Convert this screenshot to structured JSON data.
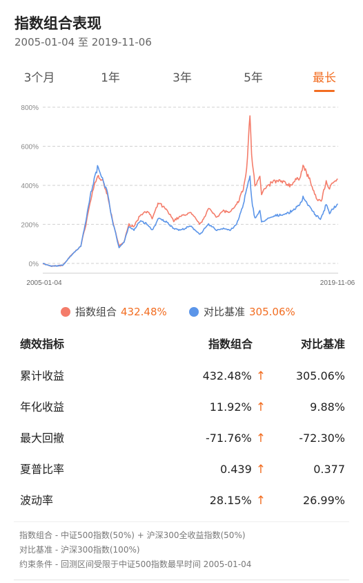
{
  "header": {
    "title": "指数组合表现",
    "date_range": "2005-01-04 至 2019-11-06"
  },
  "tabs": [
    {
      "label": "3个月",
      "active": false
    },
    {
      "label": "1年",
      "active": false
    },
    {
      "label": "3年",
      "active": false
    },
    {
      "label": "5年",
      "active": false
    },
    {
      "label": "最长",
      "active": true
    }
  ],
  "legend": {
    "items": [
      {
        "name": "指数组合",
        "value": "432.48%",
        "color": "#f47c6a"
      },
      {
        "name": "对比基准",
        "value": "305.06%",
        "color": "#5b95e9"
      }
    ]
  },
  "colors": {
    "accent": "#f26d21",
    "portfolio": "#f47c6a",
    "benchmark": "#5b95e9"
  },
  "table": {
    "headers": [
      "绩效指标",
      "指数组合",
      "对比基准"
    ],
    "rows": [
      {
        "label": "累计收益",
        "portfolio": "432.48%",
        "benchmark": "305.06%",
        "up": true
      },
      {
        "label": "年化收益",
        "portfolio": "11.92%",
        "benchmark": "9.88%",
        "up": true
      },
      {
        "label": "最大回撤",
        "portfolio": "-71.76%",
        "benchmark": "-72.30%",
        "up": true
      },
      {
        "label": "夏普比率",
        "portfolio": "0.439",
        "benchmark": "0.377",
        "up": true
      },
      {
        "label": "波动率",
        "portfolio": "28.15%",
        "benchmark": "26.99%",
        "up": true
      }
    ],
    "arrow": "↑"
  },
  "notes": [
    "指数组合 - 中证500指数(50%) + 沪深300全收益指数(50%)",
    "对比基准 - 沪深300指数(100%)",
    "约束条件 - 回测区间受限于中证500指数最早时间 2005-01-04"
  ],
  "chart_data": {
    "type": "line",
    "x_labels": [
      "2005-01-04",
      "2019-11-06"
    ],
    "ylim": [
      -50,
      800
    ],
    "y_ticks": [
      0,
      200,
      400,
      600,
      800
    ],
    "y_tick_labels": [
      "0%",
      "200%",
      "400%",
      "600%",
      "800%"
    ],
    "grid": true,
    "series": [
      {
        "name": "指数组合",
        "color": "#f47c6a",
        "x": [
          "2005-01",
          "2005-06",
          "2006-01",
          "2006-06",
          "2006-12",
          "2007-03",
          "2007-06",
          "2007-08",
          "2007-10",
          "2007-12",
          "2008-01",
          "2008-04",
          "2008-07",
          "2008-11",
          "2009-02",
          "2009-05",
          "2009-08",
          "2009-12",
          "2010-04",
          "2010-07",
          "2010-11",
          "2011-04",
          "2011-08",
          "2011-12",
          "2012-06",
          "2012-12",
          "2013-05",
          "2013-10",
          "2014-02",
          "2014-06",
          "2014-10",
          "2014-12",
          "2015-02",
          "2015-04",
          "2015-06",
          "2015-07",
          "2015-09",
          "2015-12",
          "2016-01",
          "2016-03",
          "2016-08",
          "2017-01",
          "2017-06",
          "2017-12",
          "2018-02",
          "2018-06",
          "2018-10",
          "2019-01",
          "2019-04",
          "2019-06",
          "2019-09",
          "2019-11"
        ],
        "values": [
          0,
          -15,
          -10,
          40,
          90,
          200,
          330,
          400,
          450,
          430,
          420,
          350,
          220,
          90,
          110,
          200,
          190,
          250,
          270,
          230,
          310,
          270,
          220,
          240,
          260,
          200,
          280,
          240,
          270,
          260,
          300,
          340,
          380,
          480,
          760,
          560,
          400,
          450,
          360,
          380,
          420,
          420,
          400,
          440,
          500,
          430,
          330,
          320,
          420,
          380,
          430,
          432.48
        ]
      },
      {
        "name": "对比基准",
        "color": "#5b95e9",
        "x": [
          "2005-01",
          "2005-06",
          "2006-01",
          "2006-06",
          "2006-12",
          "2007-03",
          "2007-06",
          "2007-08",
          "2007-10",
          "2007-12",
          "2008-01",
          "2008-04",
          "2008-07",
          "2008-11",
          "2009-02",
          "2009-05",
          "2009-08",
          "2009-12",
          "2010-04",
          "2010-07",
          "2010-11",
          "2011-04",
          "2011-08",
          "2011-12",
          "2012-06",
          "2012-12",
          "2013-05",
          "2013-10",
          "2014-02",
          "2014-06",
          "2014-10",
          "2014-12",
          "2015-02",
          "2015-04",
          "2015-06",
          "2015-07",
          "2015-09",
          "2015-12",
          "2016-01",
          "2016-03",
          "2016-08",
          "2017-01",
          "2017-06",
          "2017-12",
          "2018-02",
          "2018-06",
          "2018-10",
          "2019-01",
          "2019-04",
          "2019-06",
          "2019-09",
          "2019-11"
        ],
        "values": [
          0,
          -15,
          -10,
          40,
          90,
          220,
          360,
          430,
          490,
          460,
          440,
          360,
          220,
          80,
          110,
          190,
          170,
          220,
          200,
          170,
          230,
          210,
          180,
          170,
          190,
          150,
          200,
          170,
          180,
          170,
          200,
          250,
          300,
          380,
          440,
          330,
          230,
          270,
          210,
          220,
          240,
          250,
          260,
          300,
          340,
          290,
          240,
          230,
          300,
          260,
          290,
          305.06
        ]
      }
    ]
  }
}
